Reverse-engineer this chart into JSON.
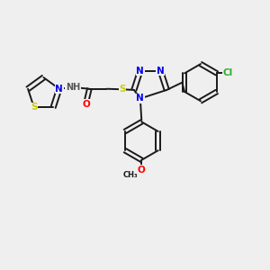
{
  "background_color": "#efefef",
  "bond_color": "#1a1a1a",
  "bond_lw": 1.4,
  "atom_colors": {
    "N": "#0000ee",
    "S": "#cccc00",
    "O": "#ff0000",
    "Cl": "#33aa33",
    "H": "#555555",
    "C": "#1a1a1a"
  },
  "figsize": [
    3.0,
    3.0
  ],
  "dpi": 100,
  "xlim": [
    0,
    10
  ],
  "ylim": [
    0,
    10
  ]
}
